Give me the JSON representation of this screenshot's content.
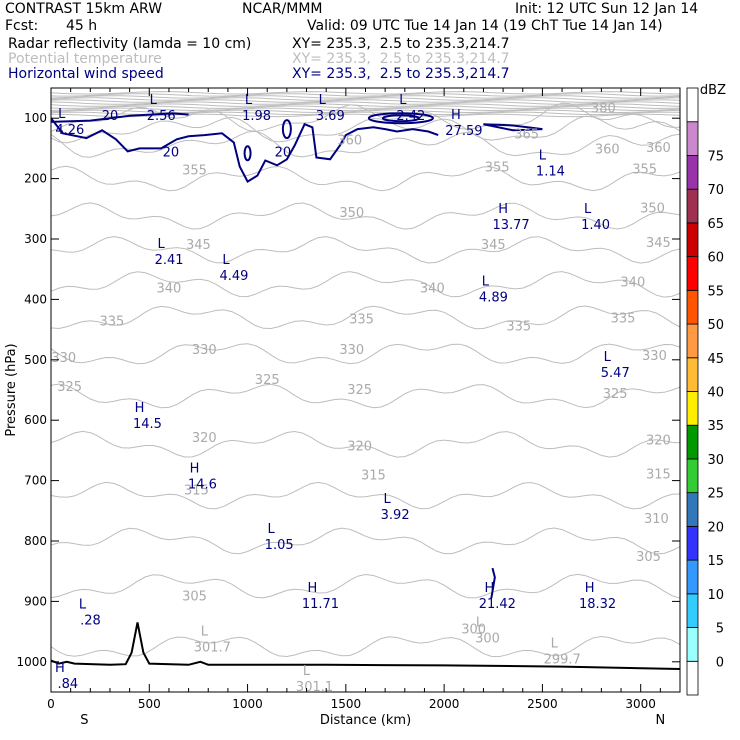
{
  "header": {
    "model": "CONTRAST 15km ARW",
    "org": "NCAR/MMM",
    "init": "Init: 12 UTC Sun 12 Jan 14",
    "fcst_label": "Fcst:",
    "fcst_value": "45 h",
    "valid": "Valid: 09 UTC Tue 14 Jan 14 (19 ChT Tue 14 Jan 14)",
    "fields": [
      {
        "name": "Radar reflectivity (lamda = 10 cm)",
        "xy": "XY= 235.3,  2.5 to 235.3,214.7",
        "color": "#000000"
      },
      {
        "name": "Potential temperature",
        "xy": "XY= 235.3,  2.5 to 235.3,214.7",
        "color": "#bdbdbd"
      },
      {
        "name": "Horizontal wind speed",
        "xy": "XY= 235.3,  2.5 to 235.3,214.7",
        "color": "#000080"
      }
    ]
  },
  "chart_data": {
    "type": "cross-section",
    "xlabel": "Distance (km)",
    "ylabel": "Pressure (hPa)",
    "x_range": [
      0,
      3200
    ],
    "y_range": [
      1050,
      50
    ],
    "x_ticks": [
      0,
      500,
      1000,
      1500,
      2000,
      2500,
      3000
    ],
    "y_ticks": [
      100,
      200,
      300,
      400,
      500,
      600,
      700,
      800,
      900,
      1000
    ],
    "axis_end_labels": {
      "left": "S",
      "right": "N"
    },
    "theta_levels": [
      300,
      305,
      310,
      315,
      320,
      325,
      330,
      335,
      340,
      345,
      350,
      355,
      360,
      365,
      380
    ],
    "theta_labels": [
      {
        "text": "380",
        "x": 2810,
        "p": 82
      },
      {
        "text": "365",
        "x": 2420,
        "p": 125
      },
      {
        "text": "360",
        "x": 1520,
        "p": 135
      },
      {
        "text": "360",
        "x": 2830,
        "p": 150
      },
      {
        "text": "360",
        "x": 3090,
        "p": 148
      },
      {
        "text": "355",
        "x": 730,
        "p": 185
      },
      {
        "text": "355",
        "x": 2270,
        "p": 180
      },
      {
        "text": "355",
        "x": 3020,
        "p": 183
      },
      {
        "text": "350",
        "x": 1530,
        "p": 255
      },
      {
        "text": "350",
        "x": 3060,
        "p": 248
      },
      {
        "text": "345",
        "x": 750,
        "p": 308
      },
      {
        "text": "345",
        "x": 2250,
        "p": 308
      },
      {
        "text": "345",
        "x": 3090,
        "p": 305
      },
      {
        "text": "340",
        "x": 600,
        "p": 380
      },
      {
        "text": "340",
        "x": 1940,
        "p": 380
      },
      {
        "text": "340",
        "x": 2960,
        "p": 370
      },
      {
        "text": "335",
        "x": 310,
        "p": 435
      },
      {
        "text": "335",
        "x": 1580,
        "p": 432
      },
      {
        "text": "335",
        "x": 2380,
        "p": 443
      },
      {
        "text": "335",
        "x": 2910,
        "p": 430
      },
      {
        "text": "330",
        "x": 65,
        "p": 495
      },
      {
        "text": "330",
        "x": 780,
        "p": 482
      },
      {
        "text": "330",
        "x": 1530,
        "p": 482
      },
      {
        "text": "330",
        "x": 3070,
        "p": 492
      },
      {
        "text": "325",
        "x": 95,
        "p": 543
      },
      {
        "text": "325",
        "x": 1100,
        "p": 532
      },
      {
        "text": "325",
        "x": 1570,
        "p": 548
      },
      {
        "text": "325",
        "x": 2870,
        "p": 555
      },
      {
        "text": "320",
        "x": 780,
        "p": 628
      },
      {
        "text": "320",
        "x": 1570,
        "p": 642
      },
      {
        "text": "320",
        "x": 3090,
        "p": 632
      },
      {
        "text": "315",
        "x": 1640,
        "p": 690
      },
      {
        "text": "315",
        "x": 740,
        "p": 715
      },
      {
        "text": "315",
        "x": 3090,
        "p": 688
      },
      {
        "text": "310",
        "x": 3080,
        "p": 762
      },
      {
        "text": "305",
        "x": 730,
        "p": 890
      },
      {
        "text": "305",
        "x": 3040,
        "p": 825
      },
      {
        "text": "300",
        "x": 2150,
        "p": 945
      }
    ],
    "extrema": [
      {
        "t": "L",
        "v": "2.56",
        "x": 520,
        "p": 80,
        "kind": "wind"
      },
      {
        "t": "L",
        "v": "1.98",
        "x": 1005,
        "p": 80,
        "kind": "wind"
      },
      {
        "t": "L",
        "v": "3.69",
        "x": 1380,
        "p": 80,
        "kind": "wind"
      },
      {
        "t": "L",
        "v": "2.42",
        "x": 1790,
        "p": 80,
        "kind": "wind"
      },
      {
        "t": "L",
        "v": "4.26",
        "x": 55,
        "p": 103,
        "kind": "wind"
      },
      {
        "t": "H",
        "v": "27.59",
        "x": 2060,
        "p": 105,
        "kind": "wind"
      },
      {
        "t": "L",
        "v": "1.14",
        "x": 2500,
        "p": 172,
        "kind": "wind"
      },
      {
        "t": "H",
        "v": "13.77",
        "x": 2300,
        "p": 260,
        "kind": "wind"
      },
      {
        "t": "L",
        "v": "1.40",
        "x": 2730,
        "p": 260,
        "kind": "wind"
      },
      {
        "t": "L",
        "v": "2.41",
        "x": 560,
        "p": 318,
        "kind": "wind"
      },
      {
        "t": "L",
        "v": "4.49",
        "x": 890,
        "p": 345,
        "kind": "wind"
      },
      {
        "t": "L",
        "v": "4.89",
        "x": 2210,
        "p": 380,
        "kind": "wind"
      },
      {
        "t": "L",
        "v": "5.47",
        "x": 2830,
        "p": 505,
        "kind": "wind"
      },
      {
        "t": "H",
        "v": "14.5",
        "x": 450,
        "p": 590,
        "kind": "wind"
      },
      {
        "t": "H",
        "v": "14.6",
        "x": 730,
        "p": 690,
        "kind": "wind"
      },
      {
        "t": "L",
        "v": "3.92",
        "x": 1710,
        "p": 740,
        "kind": "wind"
      },
      {
        "t": "L",
        "v": "1.05",
        "x": 1120,
        "p": 790,
        "kind": "wind"
      },
      {
        "t": "H",
        "v": "11.71",
        "x": 1330,
        "p": 888,
        "kind": "wind"
      },
      {
        "t": "H",
        "v": "21.42",
        "x": 2230,
        "p": 888,
        "kind": "wind"
      },
      {
        "t": "H",
        "v": "18.32",
        "x": 2740,
        "p": 888,
        "kind": "wind"
      },
      {
        "t": "L",
        "v": ".28",
        "x": 160,
        "p": 915,
        "kind": "wind"
      },
      {
        "t": "H",
        "v": ".84",
        "x": 45,
        "p": 1020,
        "kind": "wind"
      },
      {
        "t": "L",
        "v": "301.7",
        "x": 780,
        "p": 960,
        "kind": "theta"
      },
      {
        "t": "L",
        "v": "301.1",
        "x": 1300,
        "p": 1025,
        "kind": "theta"
      },
      {
        "t": "L",
        "v": "300",
        "x": 2180,
        "p": 945,
        "kind": "theta"
      },
      {
        "t": "L",
        "v": "299.7",
        "x": 2560,
        "p": 980,
        "kind": "theta"
      }
    ],
    "wind_contour_labels": [
      {
        "text": "20",
        "x": 300,
        "p": 95
      },
      {
        "text": "20",
        "x": 610,
        "p": 155
      },
      {
        "text": "20",
        "x": 1180,
        "p": 155
      }
    ],
    "colorbar": {
      "title": "dBZ",
      "levels": [
        0,
        5,
        10,
        15,
        20,
        25,
        30,
        35,
        40,
        45,
        50,
        55,
        60,
        65,
        70,
        75
      ],
      "colors": [
        "#ffffff",
        "#99ffff",
        "#33ccff",
        "#3399ff",
        "#3333ff",
        "#3377bb",
        "#33cc33",
        "#009900",
        "#ffee00",
        "#ffbb33",
        "#ff9944",
        "#ff5500",
        "#ff0000",
        "#cc0000",
        "#a03050",
        "#9933aa",
        "#cc88cc",
        "#ffffff"
      ]
    }
  }
}
